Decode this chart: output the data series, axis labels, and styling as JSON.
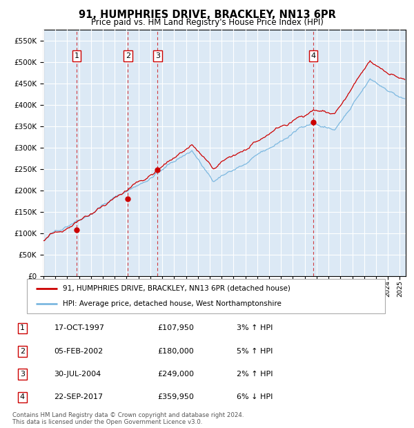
{
  "title1": "91, HUMPHRIES DRIVE, BRACKLEY, NN13 6PR",
  "title2": "Price paid vs. HM Land Registry's House Price Index (HPI)",
  "legend1": "91, HUMPHRIES DRIVE, BRACKLEY, NN13 6PR (detached house)",
  "legend2": "HPI: Average price, detached house, West Northamptonshire",
  "footer1": "Contains HM Land Registry data © Crown copyright and database right 2024.",
  "footer2": "This data is licensed under the Open Government Licence v3.0.",
  "transactions": [
    {
      "num": 1,
      "date": "17-OCT-1997",
      "price": 107950,
      "pct": "3%",
      "dir": "↑",
      "year": 1997.8
    },
    {
      "num": 2,
      "date": "05-FEB-2002",
      "price": 180000,
      "pct": "5%",
      "dir": "↑",
      "year": 2002.1
    },
    {
      "num": 3,
      "date": "30-JUL-2004",
      "price": 249000,
      "pct": "2%",
      "dir": "↑",
      "year": 2004.6
    },
    {
      "num": 4,
      "date": "22-SEP-2017",
      "price": 359950,
      "pct": "6%",
      "dir": "↓",
      "year": 2017.72
    }
  ],
  "hpi_color": "#7cb8e0",
  "price_color": "#cc0000",
  "dot_color": "#cc0000",
  "dashed_color": "#cc0000",
  "box_color": "#cc0000",
  "bg_color": "#dce9f5",
  "grid_color": "#ffffff",
  "ylim_max": 575000,
  "ytick_step": 50000,
  "xlim_start": 1995.0,
  "xlim_end": 2025.5,
  "xtick_start": 1995,
  "xtick_end": 2025
}
